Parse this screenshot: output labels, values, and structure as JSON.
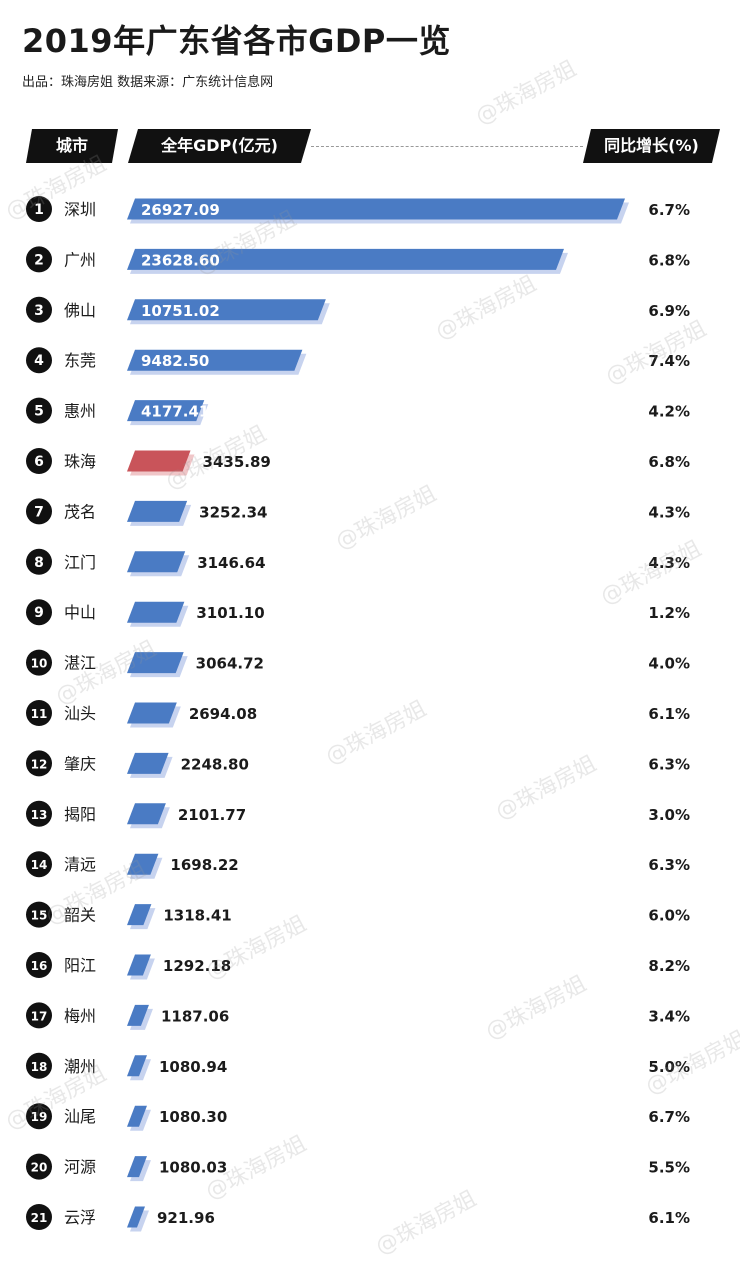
{
  "header": {
    "title": "2019年广东省各市GDP一览",
    "subtitle": "出品：珠海房姐  数据来源：广东统计信息网",
    "col_city": "城市",
    "col_gdp": "全年GDP(亿元)",
    "col_growth": "同比增长(%)"
  },
  "watermark": "@珠海房姐",
  "colors": {
    "bar": "#4a7bc4",
    "bar_shadow": "#c7d3ef",
    "highlight": "#c9545a",
    "highlight_shadow": "#f0c6c8",
    "rank_badge": "#111111"
  },
  "chart_data": {
    "type": "bar",
    "orientation": "horizontal",
    "title": "2019年广东省各市GDP一览",
    "categories": [
      "深圳",
      "广州",
      "佛山",
      "东莞",
      "惠州",
      "珠海",
      "茂名",
      "江门",
      "中山",
      "湛江",
      "汕头",
      "肇庆",
      "揭阳",
      "清远",
      "韶关",
      "阳江",
      "梅州",
      "潮州",
      "汕尾",
      "河源",
      "云浮"
    ],
    "ranks": [
      "1",
      "2",
      "3",
      "4",
      "5",
      "6",
      "7",
      "8",
      "9",
      "10",
      "11",
      "12",
      "13",
      "14",
      "15",
      "16",
      "17",
      "18",
      "19",
      "20",
      "21"
    ],
    "series": [
      {
        "name": "全年GDP(亿元)",
        "values": [
          26927.09,
          23628.6,
          10751.02,
          9482.5,
          4177.41,
          3435.89,
          3252.34,
          3146.64,
          3101.1,
          3064.72,
          2694.08,
          2248.8,
          2101.77,
          1698.22,
          1318.41,
          1292.18,
          1187.06,
          1080.94,
          1080.3,
          1080.03,
          921.96
        ],
        "labels": [
          "26927.09",
          "23628.60",
          "10751.02",
          "9482.50",
          "4177.41",
          "3435.89",
          "3252.34",
          "3146.64",
          "3101.10",
          "3064.72",
          "2694.08",
          "2248.80",
          "2101.77",
          "1698.22",
          "1318.41",
          "1292.18",
          "1187.06",
          "1080.94",
          "1080.30",
          "1080.03",
          "921.96"
        ]
      },
      {
        "name": "同比增长(%)",
        "values": [
          6.7,
          6.8,
          6.9,
          7.4,
          4.2,
          6.8,
          4.3,
          4.3,
          1.2,
          4.0,
          6.1,
          6.3,
          3.0,
          6.3,
          6.0,
          8.2,
          3.4,
          5.0,
          6.7,
          5.5,
          6.1
        ],
        "labels": [
          "6.7%",
          "6.8%",
          "6.9%",
          "7.4%",
          "4.2%",
          "6.8%",
          "4.3%",
          "4.3%",
          "1.2%",
          "4.0%",
          "6.1%",
          "6.3%",
          "3.0%",
          "6.3%",
          "6.0%",
          "8.2%",
          "3.4%",
          "5.0%",
          "6.7%",
          "5.5%",
          "6.1%"
        ]
      }
    ],
    "highlight_category": "珠海",
    "xlim": [
      0,
      26927.09
    ],
    "legend": "none",
    "grid": false
  }
}
